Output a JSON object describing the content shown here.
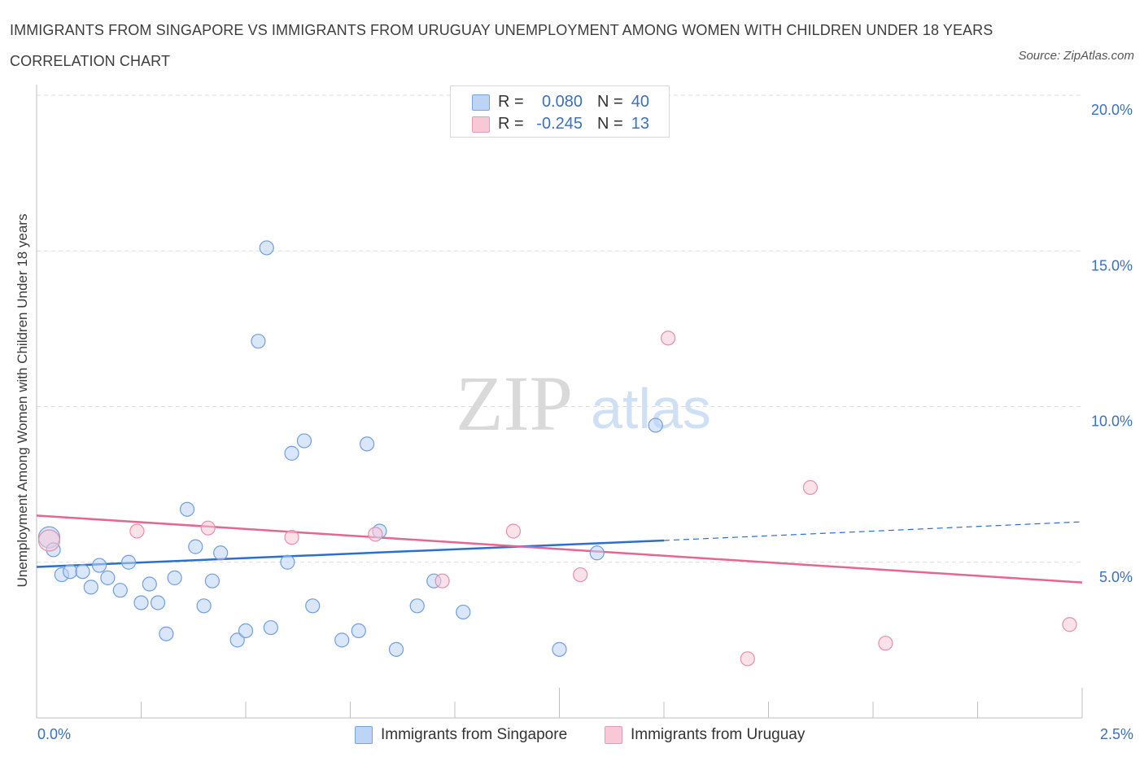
{
  "title": "IMMIGRANTS FROM SINGAPORE VS IMMIGRANTS FROM URUGUAY UNEMPLOYMENT AMONG WOMEN WITH CHILDREN UNDER 18 YEARS CORRELATION CHART",
  "source": "Source: ZipAtlas.com",
  "watermark": {
    "zip": "ZIP",
    "atlas": "atlas"
  },
  "legend": {
    "r_label": "R =",
    "n_label": "N =",
    "rows": [
      {
        "name": "Immigrants from Singapore",
        "r": "0.080",
        "n": "40",
        "fill": "#bcd4f6",
        "stroke": "#7aa3e0"
      },
      {
        "name": "Immigrants from Uruguay",
        "r": "-0.245",
        "n": "13",
        "fill": "#f8c8d6",
        "stroke": "#e79ab3"
      }
    ]
  },
  "colors": {
    "blue": "#4a85d4",
    "blue_line": "#2a6fd0",
    "pink": "#e8799f",
    "pink_line": "#e5668f",
    "axis_text": "#3a6fc4",
    "grid": "#dcdcdc"
  },
  "chart_data": {
    "type": "scatter",
    "title": "IMMIGRANTS FROM SINGAPORE VS IMMIGRANTS FROM URUGUAY UNEMPLOYMENT AMONG WOMEN WITH CHILDREN UNDER 18 YEARS CORRELATION CHART",
    "xlabel": "",
    "ylabel": "Unemployment Among Women with Children Under 18 years",
    "xlim": [
      0,
      2.5
    ],
    "ylim": [
      0,
      20
    ],
    "x_tick_labels": [
      "0.0%",
      "2.5%"
    ],
    "y_ticks": [
      5,
      10,
      15,
      20
    ],
    "y_tick_labels": [
      "5.0%",
      "10.0%",
      "15.0%",
      "20.0%"
    ],
    "grid": true,
    "legend_position": "bottom",
    "series": [
      {
        "name": "Immigrants from Singapore",
        "points": [
          [
            0.03,
            5.8
          ],
          [
            0.04,
            5.4
          ],
          [
            0.06,
            4.6
          ],
          [
            0.08,
            4.7
          ],
          [
            0.11,
            4.7
          ],
          [
            0.13,
            4.2
          ],
          [
            0.15,
            4.9
          ],
          [
            0.17,
            4.5
          ],
          [
            0.2,
            4.1
          ],
          [
            0.22,
            5.0
          ],
          [
            0.25,
            3.7
          ],
          [
            0.27,
            4.3
          ],
          [
            0.29,
            3.7
          ],
          [
            0.31,
            2.7
          ],
          [
            0.33,
            4.5
          ],
          [
            0.36,
            6.7
          ],
          [
            0.38,
            5.5
          ],
          [
            0.4,
            3.6
          ],
          [
            0.42,
            4.4
          ],
          [
            0.44,
            5.3
          ],
          [
            0.48,
            2.5
          ],
          [
            0.5,
            2.8
          ],
          [
            0.53,
            12.1
          ],
          [
            0.55,
            15.1
          ],
          [
            0.56,
            2.9
          ],
          [
            0.6,
            5.0
          ],
          [
            0.61,
            8.5
          ],
          [
            0.64,
            8.9
          ],
          [
            0.66,
            3.6
          ],
          [
            0.73,
            2.5
          ],
          [
            0.77,
            2.8
          ],
          [
            0.79,
            8.8
          ],
          [
            0.82,
            6.0
          ],
          [
            0.86,
            2.2
          ],
          [
            0.91,
            3.6
          ],
          [
            0.95,
            4.4
          ],
          [
            1.02,
            3.4
          ],
          [
            1.25,
            2.2
          ],
          [
            1.34,
            5.3
          ],
          [
            1.48,
            9.4
          ]
        ],
        "trend": {
          "x": [
            0.0,
            1.5
          ],
          "y": [
            4.85,
            5.7
          ],
          "dashed_extension": {
            "x": [
              1.5,
              2.5
            ],
            "y": [
              5.7,
              6.3
            ]
          }
        }
      },
      {
        "name": "Immigrants from Uruguay",
        "points": [
          [
            0.03,
            5.7
          ],
          [
            0.24,
            6.0
          ],
          [
            0.41,
            6.1
          ],
          [
            0.61,
            5.8
          ],
          [
            0.81,
            5.9
          ],
          [
            0.97,
            4.4
          ],
          [
            1.14,
            6.0
          ],
          [
            1.3,
            4.6
          ],
          [
            1.51,
            12.2
          ],
          [
            1.7,
            1.9
          ],
          [
            1.85,
            7.4
          ],
          [
            2.03,
            2.4
          ],
          [
            2.47,
            3.0
          ]
        ],
        "trend": {
          "x": [
            0.0,
            2.5
          ],
          "y": [
            6.5,
            4.35
          ]
        }
      }
    ]
  }
}
